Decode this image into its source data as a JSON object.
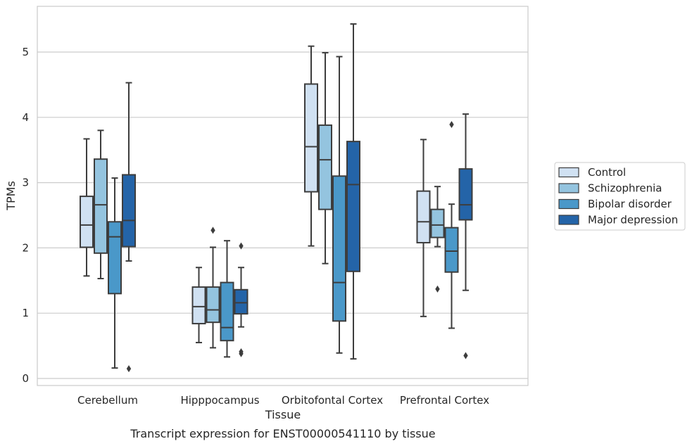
{
  "chart_data": {
    "type": "box",
    "title": "Transcript expression for ENST00000541110 by tissue",
    "xlabel": "Tissue",
    "ylabel": "TPMs",
    "ylim": [
      -0.1,
      5.7
    ],
    "yticks": [
      0,
      1,
      2,
      3,
      4,
      5
    ],
    "grid": "horizontal",
    "legend_position": "right",
    "categories": [
      "Cerebellum",
      "Hipppocampus",
      "Orbitofontal Cortex",
      "Prefrontal Cortex"
    ],
    "series": [
      {
        "name": "Control",
        "color": "#d0e1f2",
        "boxes": [
          {
            "whislo": 1.57,
            "q1": 2.01,
            "med": 2.35,
            "q3": 2.79,
            "whishi": 3.67,
            "fliers": []
          },
          {
            "whislo": 0.55,
            "q1": 0.84,
            "med": 1.1,
            "q3": 1.4,
            "whishi": 1.7,
            "fliers": []
          },
          {
            "whislo": 2.03,
            "q1": 2.86,
            "med": 3.55,
            "q3": 4.51,
            "whishi": 5.09,
            "fliers": []
          },
          {
            "whislo": 0.95,
            "q1": 2.08,
            "med": 2.4,
            "q3": 2.87,
            "whishi": 3.66,
            "fliers": []
          }
        ]
      },
      {
        "name": "Schizophrenia",
        "color": "#94c4df",
        "boxes": [
          {
            "whislo": 1.53,
            "q1": 1.92,
            "med": 2.66,
            "q3": 3.36,
            "whishi": 3.8,
            "fliers": []
          },
          {
            "whislo": 0.47,
            "q1": 0.86,
            "med": 1.05,
            "q3": 1.4,
            "whishi": 2.01,
            "fliers": [
              2.27
            ]
          },
          {
            "whislo": 1.76,
            "q1": 2.59,
            "med": 3.35,
            "q3": 3.88,
            "whishi": 4.99,
            "fliers": []
          },
          {
            "whislo": 2.02,
            "q1": 2.16,
            "med": 2.35,
            "q3": 2.59,
            "whishi": 2.94,
            "fliers": [
              1.37
            ]
          }
        ]
      },
      {
        "name": "Bipolar disorder",
        "color": "#4a98c9",
        "boxes": [
          {
            "whislo": 0.16,
            "q1": 1.3,
            "med": 2.17,
            "q3": 2.4,
            "whishi": 3.07,
            "fliers": []
          },
          {
            "whislo": 0.33,
            "q1": 0.58,
            "med": 0.78,
            "q3": 1.47,
            "whishi": 2.11,
            "fliers": []
          },
          {
            "whislo": 0.39,
            "q1": 0.88,
            "med": 1.47,
            "q3": 3.1,
            "whishi": 4.93,
            "fliers": []
          },
          {
            "whislo": 0.77,
            "q1": 1.63,
            "med": 1.95,
            "q3": 2.31,
            "whishi": 2.67,
            "fliers": [
              3.89
            ]
          }
        ]
      },
      {
        "name": "Major depression",
        "color": "#2464a8",
        "boxes": [
          {
            "whislo": 1.8,
            "q1": 2.02,
            "med": 2.42,
            "q3": 3.12,
            "whishi": 4.53,
            "fliers": [
              0.15
            ]
          },
          {
            "whislo": 0.79,
            "q1": 0.99,
            "med": 1.16,
            "q3": 1.36,
            "whishi": 1.7,
            "fliers": [
              2.03,
              0.38,
              0.41
            ]
          },
          {
            "whislo": 0.3,
            "q1": 1.64,
            "med": 2.97,
            "q3": 3.63,
            "whishi": 5.43,
            "fliers": []
          },
          {
            "whislo": 1.35,
            "q1": 2.43,
            "med": 2.66,
            "q3": 3.21,
            "whishi": 4.05,
            "fliers": [
              0.35
            ]
          }
        ]
      }
    ]
  }
}
